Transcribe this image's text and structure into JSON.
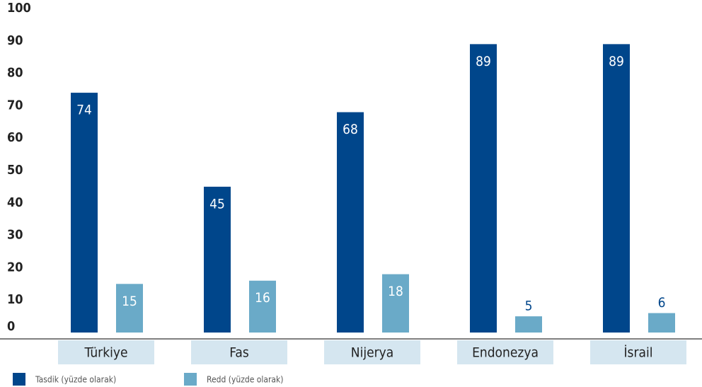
{
  "chart_data": {
    "type": "bar",
    "categories": [
      "Türkiye",
      "Fas",
      "Nijerya",
      "Endonezya",
      "İsrail"
    ],
    "series": [
      {
        "name": "Tasdik (yüzde olarak)",
        "color": "#00468b",
        "values": [
          74,
          45,
          68,
          89,
          89
        ]
      },
      {
        "name": "Redd (yüzde olarak)",
        "color": "#6aaac8",
        "values": [
          15,
          16,
          18,
          5,
          6
        ]
      }
    ],
    "ylim": [
      0,
      100
    ],
    "yticks": [
      0,
      10,
      20,
      30,
      40,
      50,
      60,
      70,
      80,
      90,
      100
    ],
    "grid": false
  }
}
